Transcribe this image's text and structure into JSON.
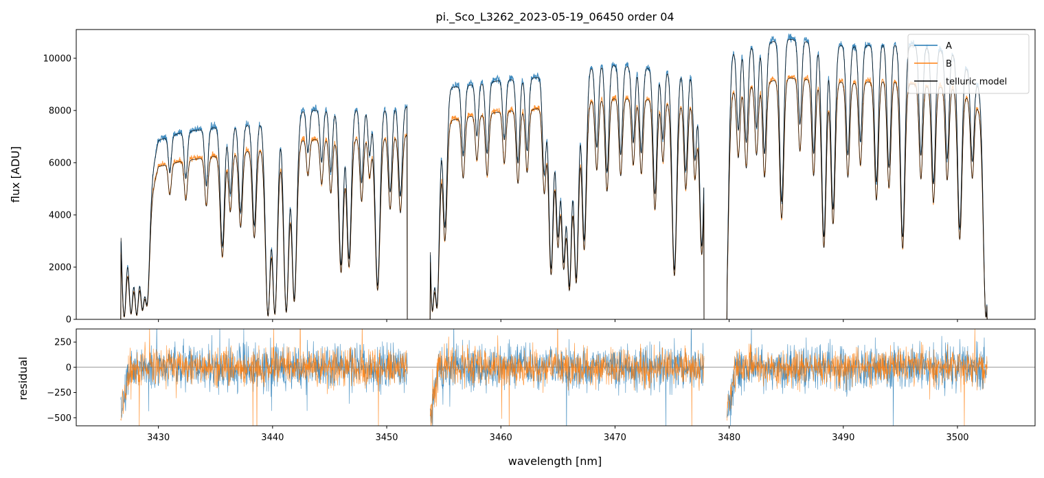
{
  "chart_data": [
    {
      "type": "line",
      "title": "pi._Sco_L3262_2023-05-19_06450  order 04",
      "xlabel": "",
      "ylabel": "flux [ADU]",
      "xlim": [
        3422.8,
        3506.8
      ],
      "ylim": [
        0,
        11100
      ],
      "yticks": [
        0,
        2000,
        4000,
        6000,
        8000,
        10000
      ],
      "ytick_labels": [
        "0",
        "2000",
        "4000",
        "6000",
        "8000",
        "10000"
      ],
      "grid": false,
      "legend_position": "top-right",
      "colors": {
        "A": "#1f77b4",
        "B": "#ff7f0e",
        "model": "#000000"
      },
      "segments": [
        {
          "x": [
            3426.7,
            3428.0,
            3429.0,
            3430.0,
            3432.0,
            3435.0,
            3438.0,
            3440.0,
            3442.0,
            3445.0,
            3448.0,
            3451.8
          ],
          "A": [
            5900,
            5200,
            4600,
            6900,
            7200,
            7400,
            7500,
            7700,
            8000,
            8100,
            8100,
            8200
          ],
          "B": [
            4700,
            4400,
            4100,
            5900,
            6100,
            6300,
            6500,
            6700,
            6900,
            6950,
            7000,
            7100
          ],
          "model_A": [
            5850,
            5150,
            4550,
            6850,
            7150,
            7350,
            7450,
            7650,
            7950,
            8050,
            8050,
            8150
          ],
          "model_B": [
            4650,
            4350,
            4050,
            5850,
            6050,
            6250,
            6450,
            6650,
            6850,
            6900,
            6950,
            7050
          ]
        },
        {
          "x": [
            3453.8,
            3455.0,
            3457.0,
            3460.0,
            3463.0,
            3466.0,
            3469.0,
            3472.0,
            3475.0,
            3477.8
          ],
          "A": [
            8700,
            8900,
            9000,
            9200,
            9300,
            9500,
            9800,
            9700,
            9600,
            9400
          ],
          "B": [
            7400,
            7600,
            7800,
            8000,
            8100,
            8300,
            8500,
            8500,
            8400,
            8300
          ],
          "model_A": [
            8650,
            8850,
            8950,
            9150,
            9250,
            9450,
            9750,
            9650,
            9550,
            9350
          ],
          "model_B": [
            7350,
            7550,
            7750,
            7950,
            8050,
            8250,
            8450,
            8450,
            8350,
            8250
          ]
        },
        {
          "x": [
            3479.8,
            3482.0,
            3485.0,
            3488.0,
            3491.0,
            3494.0,
            3497.0,
            3500.0,
            3502.6
          ],
          "A": [
            10300,
            10500,
            10800,
            10600,
            10500,
            10600,
            10500,
            10200,
            8500
          ],
          "B": [
            8800,
            9000,
            9300,
            9200,
            9100,
            9200,
            9000,
            8900,
            7800
          ],
          "model_A": [
            10250,
            10450,
            10750,
            10550,
            10450,
            10550,
            10450,
            10150,
            8450
          ],
          "model_B": [
            8750,
            8950,
            9250,
            9150,
            9050,
            9150,
            8950,
            8850,
            7750
          ]
        }
      ],
      "absorption_lines": [
        3427.0,
        3427.6,
        3428.1,
        3428.6,
        3429.0,
        3431.0,
        3432.4,
        3434.2,
        3435.6,
        3436.3,
        3437.2,
        3438.4,
        3439.6,
        3440.2,
        3441.2,
        3441.9,
        3443.1,
        3444.3,
        3445.1,
        3446.0,
        3446.7,
        3447.8,
        3448.5,
        3449.2,
        3450.3,
        3451.2,
        3454.0,
        3454.4,
        3455.1,
        3456.7,
        3457.9,
        3458.8,
        3460.3,
        3461.5,
        3462.3,
        3463.8,
        3464.4,
        3465.0,
        3465.5,
        3466.0,
        3466.6,
        3467.3,
        3468.4,
        3469.3,
        3470.5,
        3471.6,
        3472.3,
        3473.5,
        3474.2,
        3475.2,
        3476.2,
        3477.0,
        3477.6,
        3479.7,
        3480.8,
        3481.5,
        3482.4,
        3483.1,
        3484.6,
        3486.2,
        3487.4,
        3488.3,
        3489.1,
        3490.4,
        3491.5,
        3492.9,
        3494.0,
        3495.2,
        3496.8,
        3497.9,
        3499.1,
        3500.2,
        3501.3,
        3502.5
      ],
      "absorption_depth": [
        0.98,
        0.95,
        0.96,
        0.9,
        0.85,
        0.2,
        0.25,
        0.3,
        0.62,
        0.35,
        0.45,
        0.52,
        0.98,
        0.97,
        0.96,
        0.9,
        0.2,
        0.25,
        0.3,
        0.74,
        0.71,
        0.35,
        0.22,
        0.84,
        0.4,
        0.42,
        0.95,
        0.93,
        0.6,
        0.3,
        0.22,
        0.3,
        0.25,
        0.35,
        0.3,
        0.4,
        0.79,
        0.65,
        0.75,
        0.86,
        0.83,
        0.68,
        0.32,
        0.42,
        0.35,
        0.3,
        0.34,
        0.5,
        0.28,
        0.8,
        0.4,
        0.35,
        0.7,
        0.98,
        0.3,
        0.35,
        0.3,
        0.4,
        0.58,
        0.3,
        0.4,
        0.7,
        0.6,
        0.4,
        0.35,
        0.5,
        0.45,
        0.7,
        0.4,
        0.5,
        0.4,
        0.65,
        0.35,
        0.99
      ],
      "legend": [
        {
          "label": "A",
          "color": "#1f77b4"
        },
        {
          "label": "B",
          "color": "#ff7f0e"
        },
        {
          "label": "telluric model",
          "color": "#000000"
        }
      ]
    },
    {
      "type": "line",
      "title": "",
      "xlabel": "wavelength [nm]",
      "ylabel": "residual",
      "xlim": [
        3422.8,
        3506.8
      ],
      "ylim": [
        -580,
        380
      ],
      "yticks": [
        -500,
        -250,
        0,
        250
      ],
      "ytick_labels": [
        "−500",
        "−250",
        "0",
        "250"
      ],
      "xticks": [
        3430,
        3440,
        3450,
        3460,
        3470,
        3480,
        3490,
        3500
      ],
      "xtick_labels": [
        "3430",
        "3440",
        "3450",
        "3460",
        "3470",
        "3480",
        "3490",
        "3500"
      ],
      "zero_line": true,
      "series": [
        {
          "name": "A",
          "color": "#1f77b4",
          "noise_amplitude": 170
        },
        {
          "name": "B",
          "color": "#ff7f0e",
          "noise_amplitude": 140
        }
      ],
      "segments_x": [
        [
          3426.7,
          3451.8
        ],
        [
          3453.8,
          3477.8
        ],
        [
          3479.8,
          3502.6
        ]
      ]
    }
  ]
}
